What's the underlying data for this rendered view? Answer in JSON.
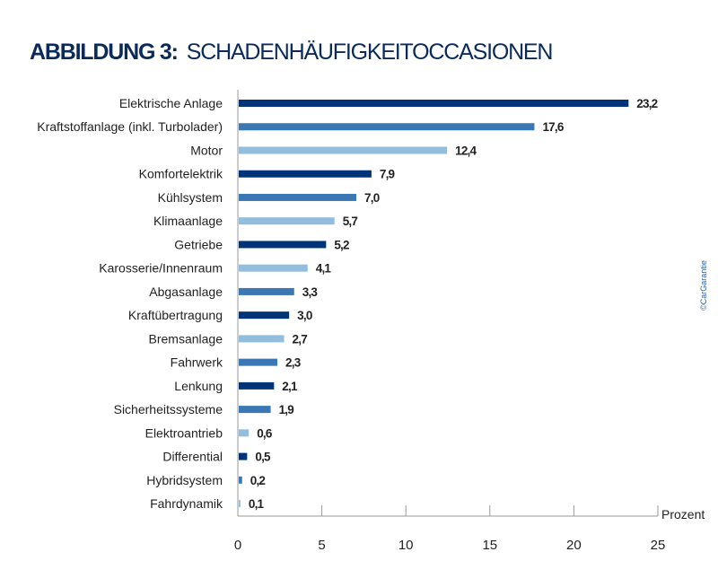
{
  "title_bold": "ABBILDUNG 3:",
  "title_rest": "SCHADENHÄUFIGKEITOCCASIONEN",
  "copyright": "©CarGarantie",
  "colors": {
    "dark": "#003478",
    "mid": "#3b77b3",
    "light": "#93bddd"
  },
  "chart_data": {
    "type": "bar",
    "orientation": "horizontal",
    "title": "ABBILDUNG 3: SCHADENHÄUFIGKEITOCCASIONEN",
    "xlabel": "Prozent",
    "xlim": [
      0,
      25
    ],
    "xticks": [
      "0",
      "5",
      "10",
      "15",
      "20",
      "25"
    ],
    "categories": [
      "Elektrische Anlage",
      "Kraftstoffanlage (inkl. Turbolader)",
      "Motor",
      "Komfortelektrik",
      "Kühlsystem",
      "Klimaanlage",
      "Getriebe",
      "Karosserie/Innenraum",
      "Abgasanlage",
      "Kraftübertragung",
      "Bremsanlage",
      "Fahrwerk",
      "Lenkung",
      "Sicherheitssysteme",
      "Elektroantrieb",
      "Differential",
      "Hybridsystem",
      "Fahrdynamik"
    ],
    "values": [
      23.2,
      17.6,
      12.4,
      7.9,
      7.0,
      5.7,
      5.2,
      4.1,
      3.3,
      3.0,
      2.7,
      2.3,
      2.1,
      1.9,
      0.6,
      0.5,
      0.2,
      0.1
    ],
    "value_labels": [
      "23,2",
      "17,6",
      "12,4",
      "7,9",
      "7,0",
      "5,7",
      "5,2",
      "4,1",
      "3,3",
      "3,0",
      "2,7",
      "2,3",
      "2,1",
      "1,9",
      "0,6",
      "0,5",
      "0,2",
      "0,1"
    ],
    "bar_colors": [
      "dark",
      "mid",
      "light",
      "dark",
      "mid",
      "light",
      "dark",
      "light",
      "mid",
      "dark",
      "light",
      "mid",
      "dark",
      "mid",
      "light",
      "dark",
      "mid",
      "light"
    ]
  }
}
